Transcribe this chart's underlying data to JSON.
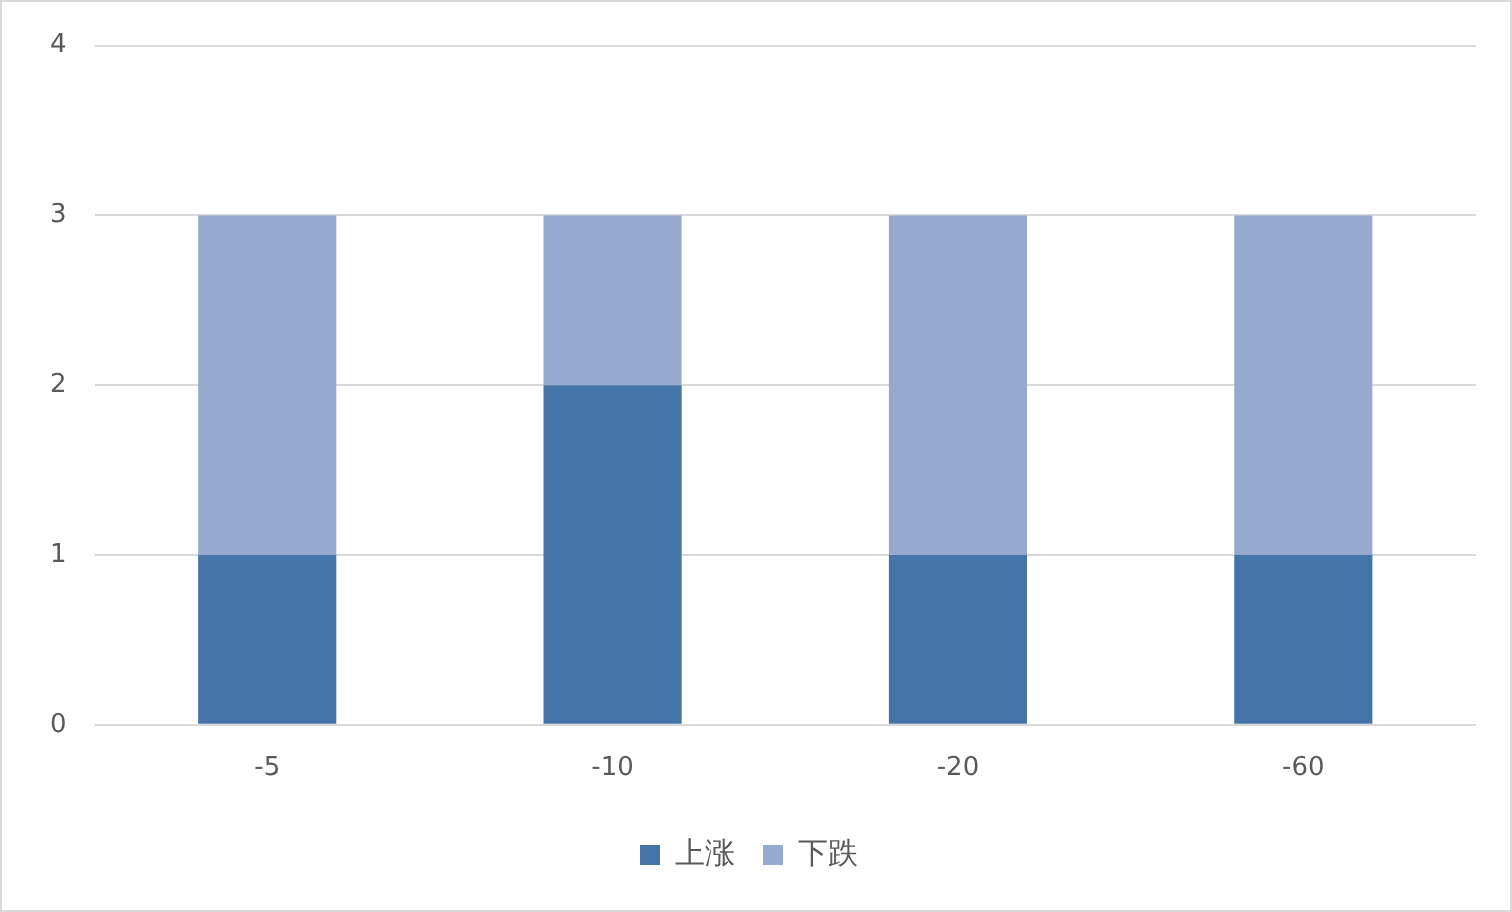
{
  "chart_data": {
    "type": "bar",
    "stacked": true,
    "categories": [
      "-5",
      "-10",
      "-20",
      "-60"
    ],
    "series": [
      {
        "name": "上涨",
        "color": "#4574a8",
        "values": [
          1,
          2,
          1,
          1
        ]
      },
      {
        "name": "下跌",
        "color": "#96aad0",
        "values": [
          2,
          1,
          2,
          2
        ]
      }
    ],
    "ylim": [
      0,
      4
    ],
    "yticks": [
      0,
      1,
      2,
      3,
      4
    ],
    "grid": "y",
    "legend": "bottom"
  }
}
